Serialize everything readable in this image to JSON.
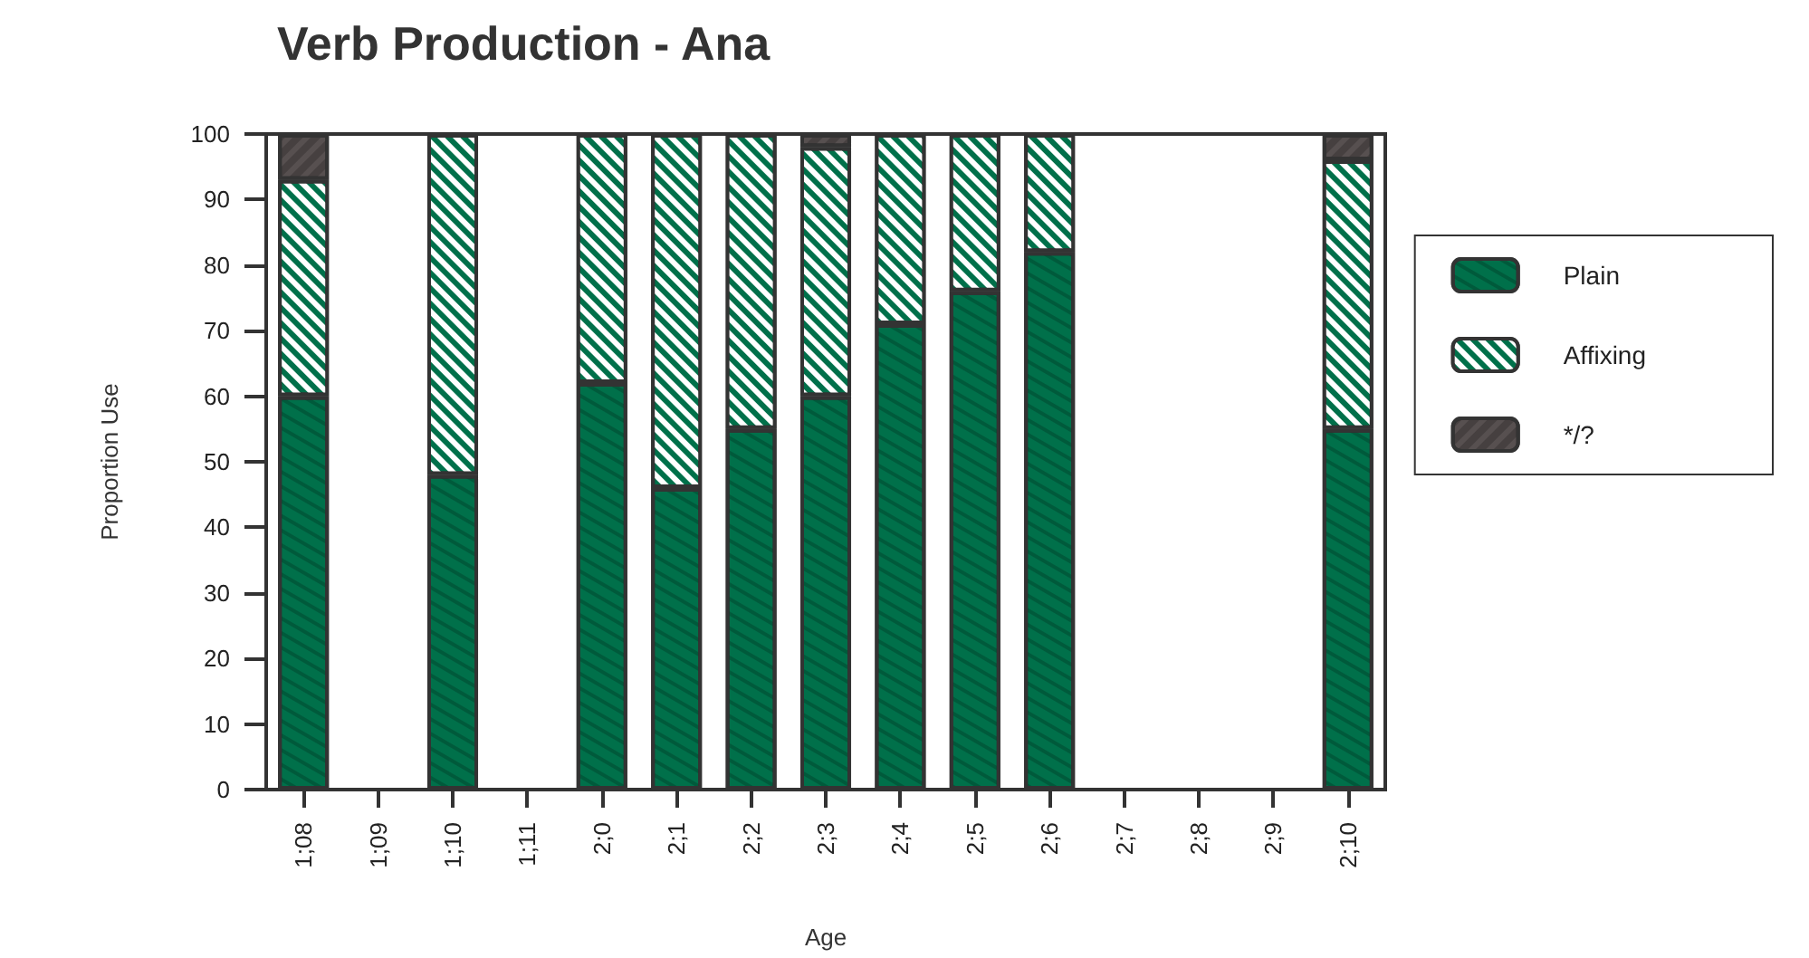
{
  "chart_data": {
    "type": "bar",
    "title": "Verb Production - Ana",
    "xlabel": "Age",
    "ylabel": "Proportion Use",
    "categories": [
      "1;08",
      "1;09",
      "1;10",
      "1;11",
      "2;0",
      "2;1",
      "2;2",
      "2;3",
      "2;4",
      "2;5",
      "2;6",
      "2;7",
      "2;8",
      "2;9",
      "2;10"
    ],
    "series": [
      {
        "name": "Plain",
        "color": "#00704a",
        "values": [
          60,
          null,
          48,
          null,
          62,
          46,
          55,
          60,
          71,
          76,
          82,
          null,
          null,
          null,
          55
        ]
      },
      {
        "name": "Affixing",
        "color": "#00704a",
        "values": [
          33,
          null,
          52,
          null,
          38,
          54,
          45,
          38,
          29,
          24,
          18,
          null,
          null,
          null,
          41
        ]
      },
      {
        "name": "*/?",
        "color": "#575050",
        "values": [
          7,
          null,
          null,
          null,
          null,
          null,
          null,
          2,
          null,
          null,
          null,
          null,
          null,
          null,
          4
        ]
      }
    ],
    "stacked": true,
    "ylim": [
      0,
      100
    ],
    "yticks": [
      0,
      10,
      20,
      30,
      40,
      50,
      60,
      70,
      80,
      90,
      100
    ],
    "grid": false,
    "legend": "right"
  }
}
